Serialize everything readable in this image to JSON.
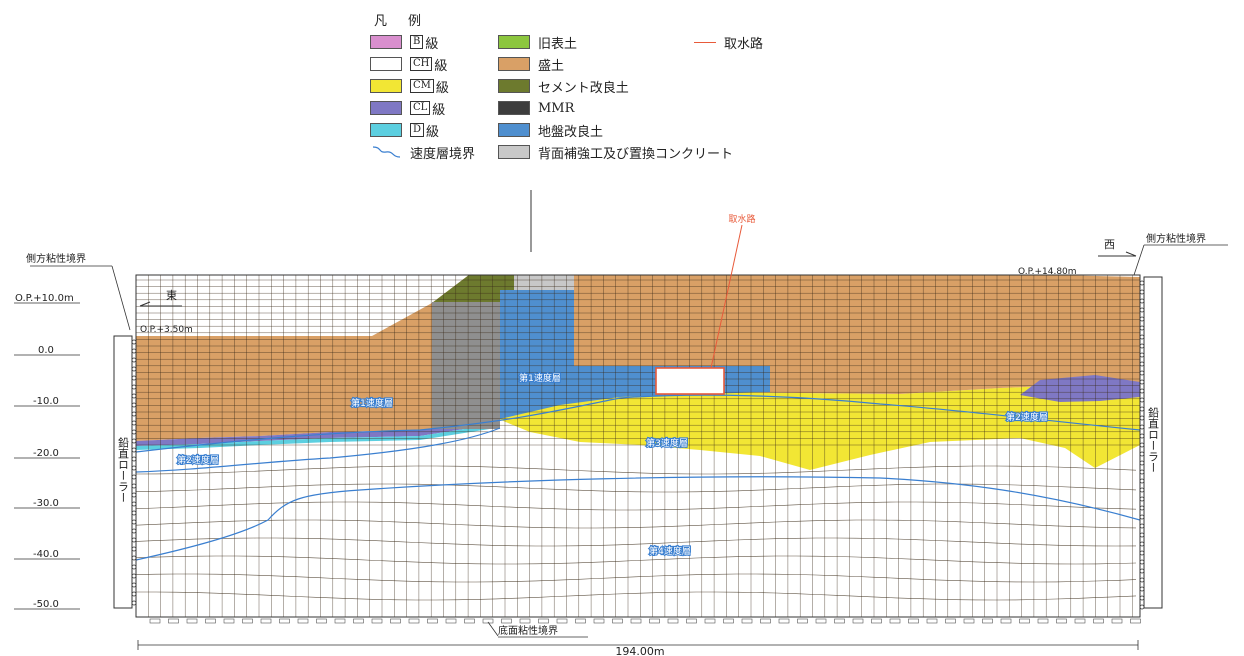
{
  "legend": {
    "title_1": "凡",
    "title_2": "例",
    "rock_classes": [
      {
        "code": "B",
        "suffix": "級",
        "color": "#d98fce"
      },
      {
        "code": "CH",
        "suffix": "級",
        "color": "#ffffff"
      },
      {
        "code": "CM",
        "suffix": "級",
        "color": "#f2e634"
      },
      {
        "code": "CL",
        "suffix": "級",
        "color": "#7f78c4"
      },
      {
        "code": "D",
        "suffix": "級",
        "color": "#5ccfe0"
      }
    ],
    "velocity_boundary": "速度層境界",
    "materials": [
      {
        "label": "旧表土",
        "color": "#8cc63e"
      },
      {
        "label": "盛土",
        "color": "#d9a066"
      },
      {
        "label": "セメント改良土",
        "color": "#6d7a2e"
      },
      {
        "label": "MMR",
        "color": "#3d3d3d"
      },
      {
        "label": "地盤改良土",
        "color": "#4f8fcf"
      },
      {
        "label": "背面補強工及び置換コンクリート",
        "color": "#c8c8c8"
      }
    ],
    "intake_label": "取水路",
    "intake_color": "#e85a3a"
  },
  "section": {
    "elev_labels": [
      "O.P.+10.0m",
      "0.0",
      "-10.0",
      "-20.0",
      "-30.0",
      "-40.0",
      "-50.0"
    ],
    "left_boundary": "側方粘性境界",
    "right_boundary": "側方粘性境界",
    "bottom_boundary": "底面粘性境界",
    "left_wall": "鉛直ローラー",
    "right_wall": "鉛直ローラー",
    "east": "東",
    "west": "西",
    "left_elev": "O.P.+3.50m",
    "right_elev": "O.P.+14.80m",
    "structure": "取水路",
    "width_label": "194.00m",
    "layers": [
      "第1速度層",
      "第2速度層",
      "第3速度層",
      "第4速度層"
    ]
  }
}
